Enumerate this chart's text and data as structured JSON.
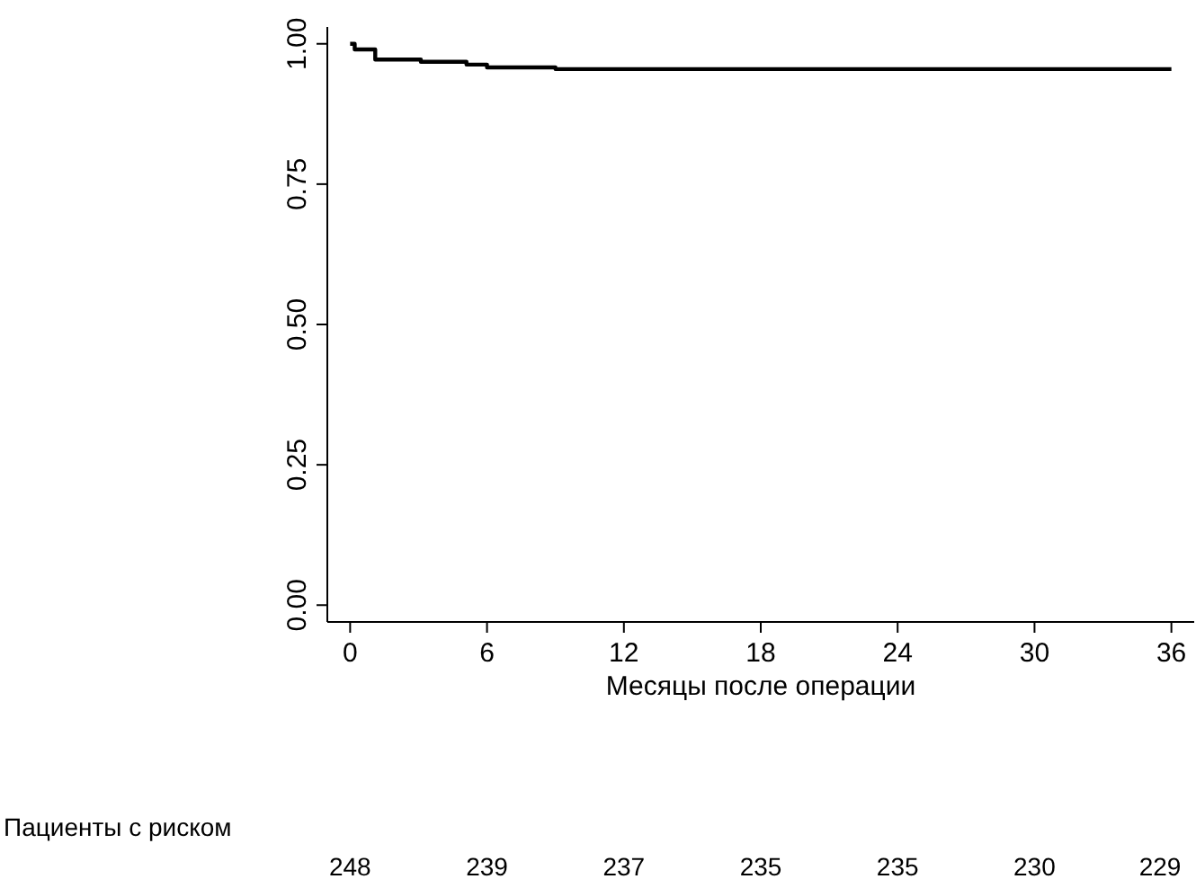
{
  "chart_data": {
    "type": "step",
    "xlabel": "Месяцы после операции",
    "x": [
      0,
      0.2,
      1.1,
      3.1,
      5.1,
      6.0,
      9.0,
      36
    ],
    "series": [
      {
        "color": "#000000",
        "values": [
          1,
          0.99,
          0.972,
          0.968,
          0.963,
          0.958,
          0.955,
          0.955
        ]
      }
    ],
    "xlim": [
      -1,
      37
    ],
    "xticks": [
      0,
      6,
      12,
      18,
      24,
      30,
      36
    ],
    "ylim": [
      -0.03,
      1.03
    ],
    "yticks": [
      {
        "value": 0,
        "label": "0.00"
      },
      {
        "value": 0.25,
        "label": "0.25"
      },
      {
        "value": 0.5,
        "label": "0.50"
      },
      {
        "value": 0.75,
        "label": "0.75"
      },
      {
        "value": 1,
        "label": "1.00"
      }
    ],
    "grid": false,
    "legend": false,
    "marker": "none",
    "line_style": "solid",
    "annotations": [
      "Пациенты с риском",
      "248",
      "239",
      "237",
      "235",
      "235",
      "230",
      "229"
    ]
  }
}
